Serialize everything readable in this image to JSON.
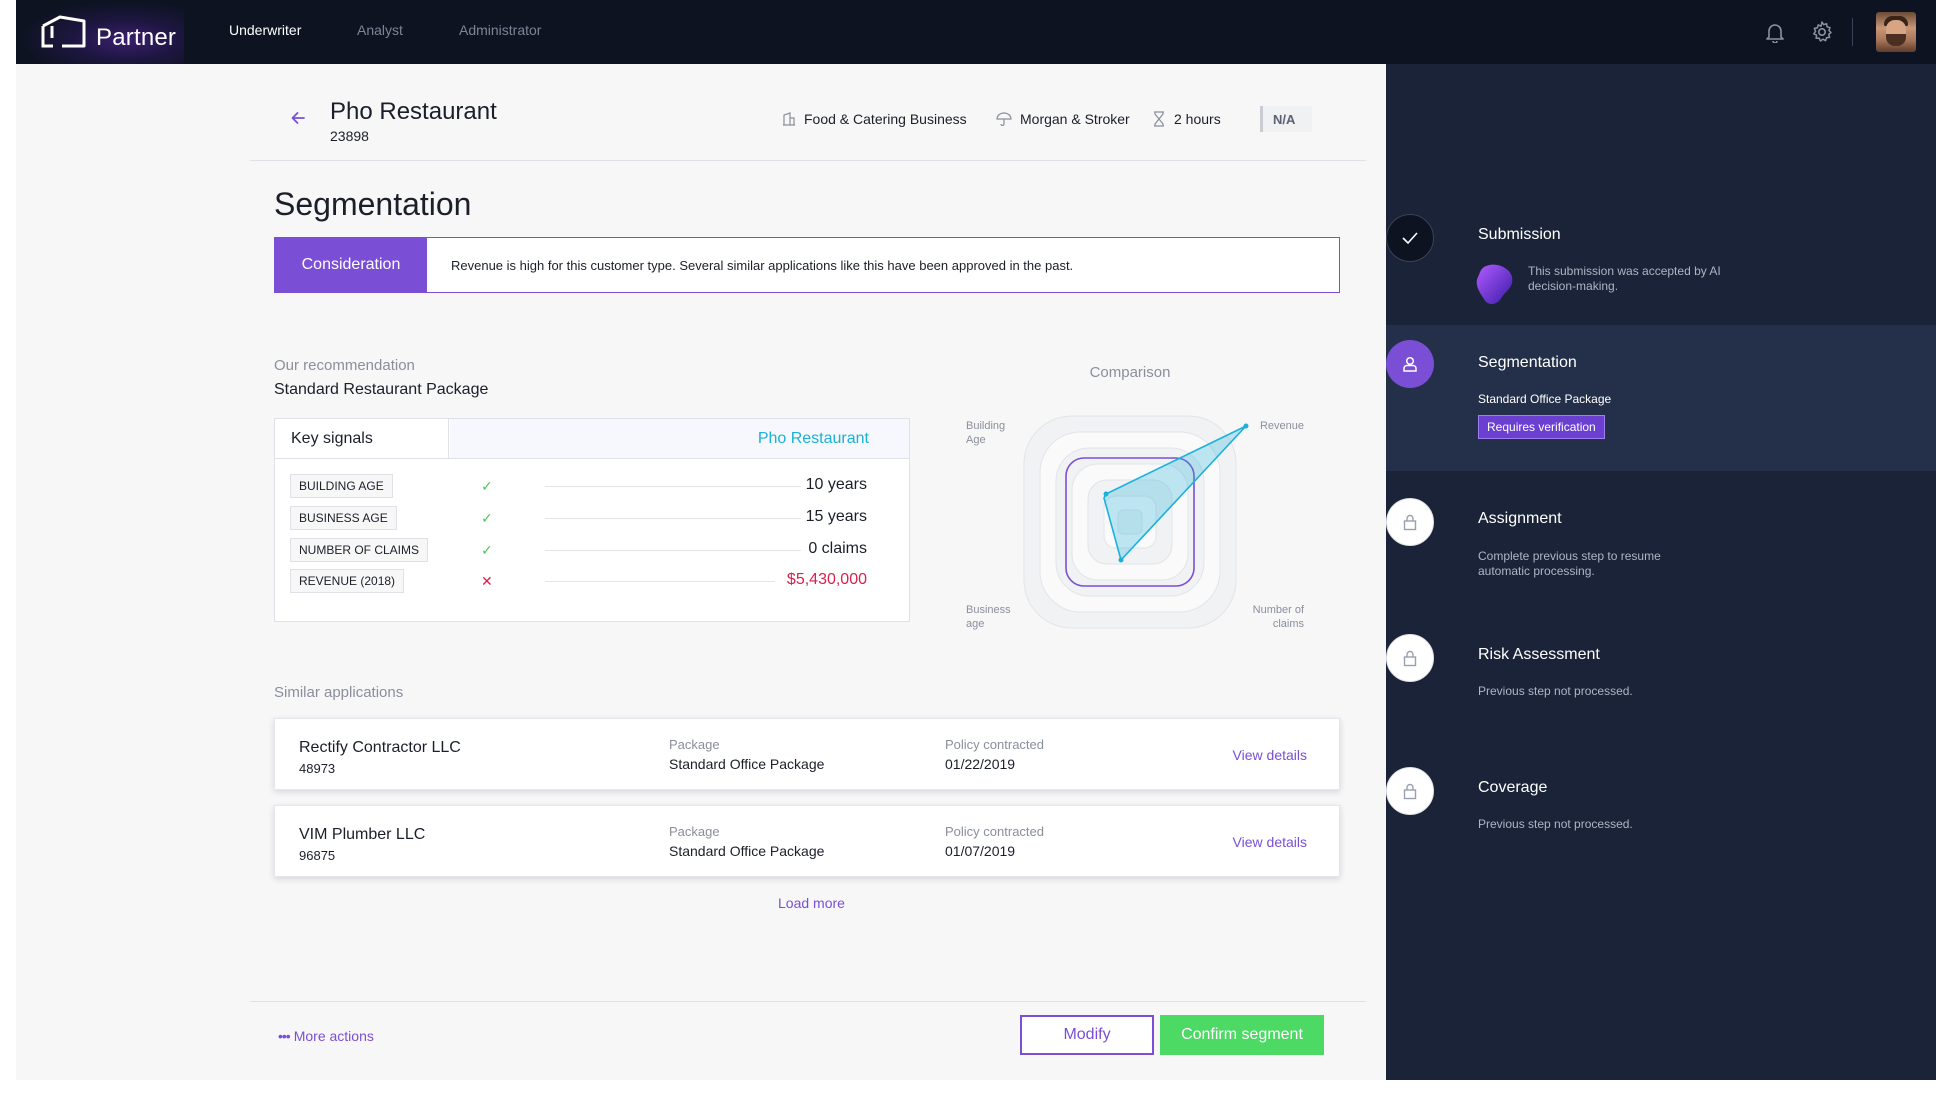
{
  "app": {
    "brand": "Partner",
    "nav": [
      "Underwriter",
      "Analyst",
      "Administrator"
    ],
    "active_nav": "Underwriter"
  },
  "header": {
    "title": "Pho Restaurant",
    "id": "23898",
    "industry": "Food & Catering Business",
    "broker": "Morgan & Stroker",
    "time": "2 hours",
    "status": "N/A"
  },
  "segmentation": {
    "title": "Segmentation",
    "consideration_label": "Consideration",
    "consideration_text": "Revenue is high for this customer type. Several similar applications like this have been approved in the past."
  },
  "recommendation": {
    "label": "Our recommendation",
    "value": "Standard Restaurant Package"
  },
  "signals": {
    "header_left": "Key signals",
    "header_right": "Pho Restaurant",
    "rows": [
      {
        "label": "BUILDING AGE",
        "ok": true,
        "value": "10 years"
      },
      {
        "label": "BUSINESS AGE",
        "ok": true,
        "value": "15 years"
      },
      {
        "label": "NUMBER OF CLAIMS",
        "ok": true,
        "value": "0 claims"
      },
      {
        "label": "REVENUE (2018)",
        "ok": false,
        "value": "$5,430,000"
      }
    ]
  },
  "comparison": {
    "title": "Comparison",
    "axes": {
      "top_left": [
        "Building",
        "Age"
      ],
      "top_right": [
        "Revenue"
      ],
      "bottom_left": [
        "Business",
        "age"
      ],
      "bottom_right": [
        "Number of",
        "claims"
      ]
    },
    "colors": {
      "typical": "#7a4fd6",
      "business": "#1bb1d9"
    }
  },
  "similar": {
    "label": "Similar applications",
    "package_key": "Package",
    "policy_key": "Policy contracted",
    "link_label": "View details",
    "items": [
      {
        "name": "Rectify Contractor LLC",
        "id": "48973",
        "package": "Standard Office Package",
        "date": "01/22/2019"
      },
      {
        "name": "VIM Plumber LLC",
        "id": "96875",
        "package": "Standard Office Package",
        "date": "01/07/2019"
      }
    ],
    "load_more": "Load more"
  },
  "footer": {
    "more_actions": "More actions",
    "modify": "Modify",
    "confirm": "Confirm segment"
  },
  "steps": [
    {
      "title": "Submission",
      "desc": "This submission was accepted by AI decision-making.",
      "state": "done"
    },
    {
      "title": "Segmentation",
      "desc": "Standard Office Package",
      "badge": "Requires verification",
      "state": "active"
    },
    {
      "title": "Assignment",
      "desc": "Complete previous step to resume automatic processing.",
      "state": "locked"
    },
    {
      "title": "Risk Assessment",
      "desc": "Previous step not processed.",
      "state": "locked"
    },
    {
      "title": "Coverage",
      "desc": "Previous step not processed.",
      "state": "locked"
    }
  ]
}
